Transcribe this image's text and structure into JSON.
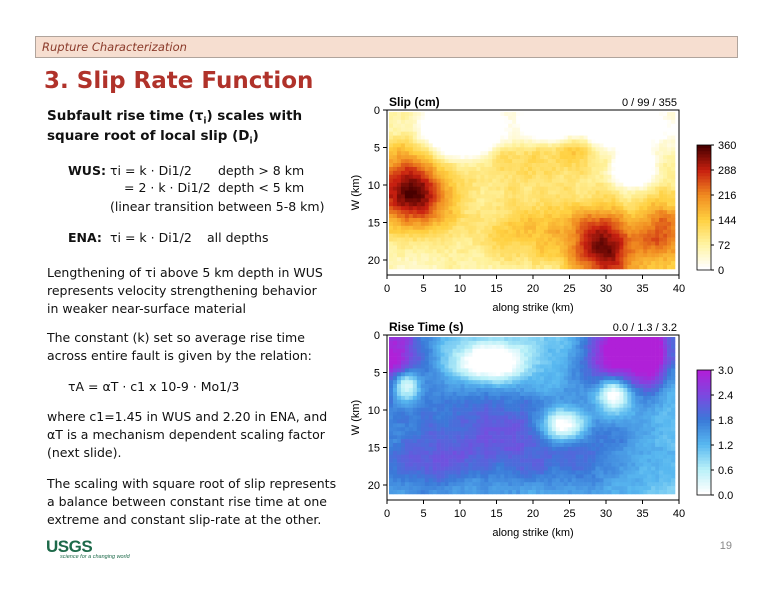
{
  "header": {
    "section": "Rupture Characterization",
    "title": "3. Slip Rate Function"
  },
  "body": {
    "heading_line1": "Subfault rise time (τ",
    "heading_sub": "i",
    "heading_line1_end": ") scales with",
    "heading_line2": "square root of local slip (D",
    "heading_line2_sub": "i",
    "heading_line2_end": ")",
    "wus_label": "WUS:",
    "wus_eq1": "τi = k · Di1/2",
    "wus_cond1": "depth > 8 km",
    "wus_eq2": "= 2 · k · Di1/2",
    "wus_cond2": "depth < 5 km",
    "wus_note": "(linear transition between 5-8 km)",
    "ena_label": "ENA:",
    "ena_eq": "τi = k · Di1/2",
    "ena_cond": "all depths",
    "para1": [
      "Lengthening of τi above 5 km depth in WUS",
      "represents velocity strengthening behavior",
      "in weaker near-surface material"
    ],
    "para2": [
      "The constant (k) set so average rise time",
      "across entire fault is given by the relation:"
    ],
    "eq_main": "τA = αT · c1 x 10-9 · Mo1/3",
    "para3": [
      "where c1=1.45 in WUS and 2.20 in ENA, and",
      "αT is a mechanism dependent scaling factor",
      "(next slide)."
    ],
    "para4": [
      "The scaling with square root of slip represents",
      "a balance between constant rise time at one",
      "extreme and constant slip-rate at the other."
    ]
  },
  "footer": {
    "logo": "USGS",
    "logo_tagline": "science for a changing world",
    "page": "19"
  },
  "chart_data": [
    {
      "type": "heatmap",
      "title": "Slip (cm)",
      "stats": "0 / 99 / 355",
      "xlabel": "along strike (km)",
      "ylabel": "W (km)",
      "xticks": [
        "0",
        "5",
        "10",
        "15",
        "20",
        "25",
        "30",
        "35",
        "40"
      ],
      "yticks": [
        "0",
        "5",
        "10",
        "15",
        "20"
      ],
      "xlim": [
        0,
        40
      ],
      "ylim": [
        22,
        0
      ],
      "colorbar_ticks": [
        "360",
        "288",
        "216",
        "144",
        "72",
        "0"
      ],
      "colorbar_range": [
        0,
        360
      ],
      "colors": [
        "#ffffff",
        "#fff3a0",
        "#ffd040",
        "#f08a20",
        "#c82010",
        "#4a0000"
      ]
    },
    {
      "type": "heatmap",
      "title": "Rise Time (s)",
      "stats": "0.0 / 1.3 / 3.2",
      "xlabel": "along strike (km)",
      "ylabel": "W (km)",
      "xticks": [
        "0",
        "5",
        "10",
        "15",
        "20",
        "25",
        "30",
        "35",
        "40"
      ],
      "yticks": [
        "0",
        "5",
        "10",
        "15",
        "20"
      ],
      "xlim": [
        0,
        40
      ],
      "ylim": [
        22,
        0
      ],
      "colorbar_ticks": [
        "3.0",
        "2.4",
        "1.8",
        "1.2",
        "0.6",
        "0.0"
      ],
      "colorbar_range": [
        0,
        3.0
      ],
      "colors": [
        "#ffffff",
        "#b8f0f8",
        "#58b8f0",
        "#3a7ad8",
        "#7a4ae0",
        "#b020d8"
      ]
    }
  ]
}
